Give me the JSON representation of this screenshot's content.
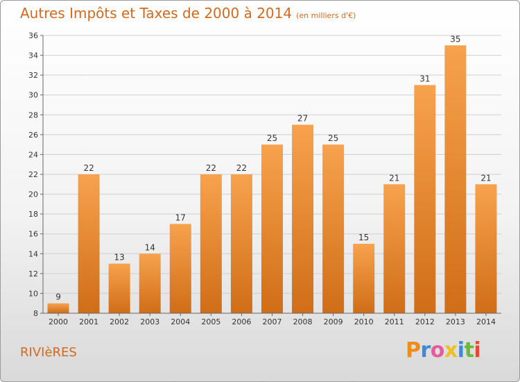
{
  "title": "Autres Impôts et Taxes de 2000 à 2014",
  "title_unit": "(en milliers d'€)",
  "commune": "RIVIèRES",
  "brand": {
    "letters": [
      "P",
      "r",
      "o",
      "x",
      "i",
      "t",
      "i"
    ],
    "colors": [
      "#f08c1e",
      "#3c8ad8",
      "#e85a9c",
      "#f0c020",
      "#3c8ad8",
      "#6cb83c",
      "#e84a2c"
    ]
  },
  "colors": {
    "accent": "#d2691e",
    "bar_light": "#f7a24e",
    "bar_dark": "#d06d17",
    "grid": "#cfcfcf"
  },
  "chart_data": {
    "type": "bar",
    "title": "Autres Impôts et Taxes de 2000 à 2014",
    "xlabel": "",
    "ylabel": "",
    "categories": [
      "2000",
      "2001",
      "2002",
      "2003",
      "2004",
      "2005",
      "2006",
      "2007",
      "2008",
      "2009",
      "2010",
      "2011",
      "2012",
      "2013",
      "2014"
    ],
    "values": [
      9,
      22,
      13,
      14,
      17,
      22,
      22,
      25,
      27,
      25,
      15,
      21,
      31,
      35,
      21
    ],
    "ylim": [
      8,
      36
    ],
    "yticks": [
      8,
      10,
      12,
      14,
      16,
      18,
      20,
      22,
      24,
      26,
      28,
      30,
      32,
      34,
      36
    ],
    "grid": true,
    "legend": "none"
  }
}
